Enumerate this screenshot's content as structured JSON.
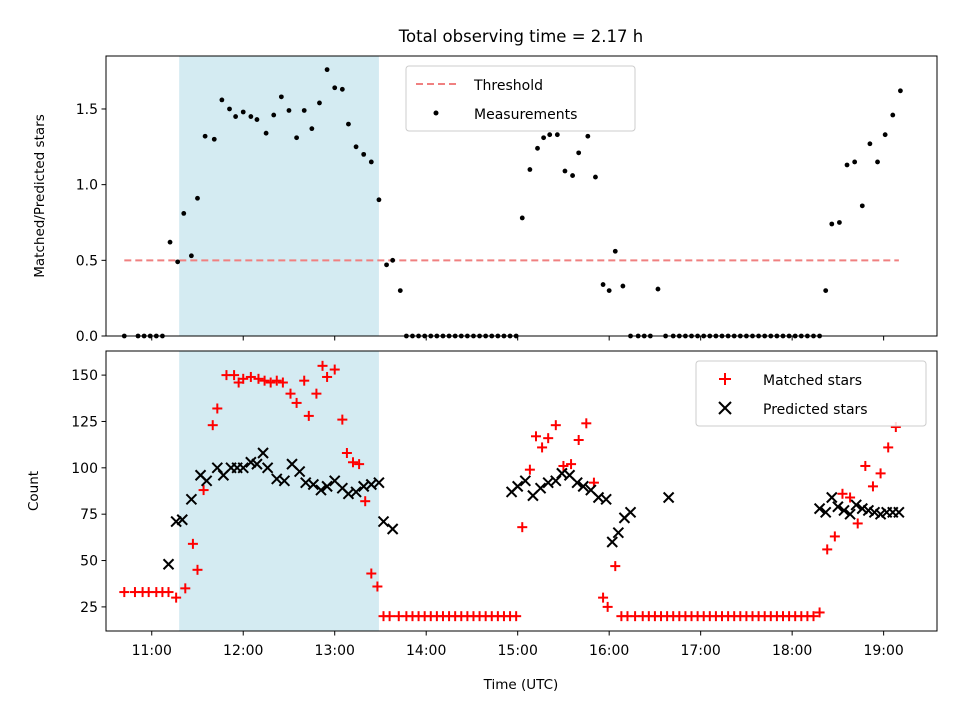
{
  "figure": {
    "title": "Total observing time = 2.17 h",
    "xlabel": "Time (UTC)"
  },
  "chart_data": [
    {
      "type": "scatter",
      "title": "Total observing time = 2.17 h",
      "xlabel": "",
      "ylabel": "Matched/Predicted stars",
      "xlim": [
        "10:30",
        "19:35"
      ],
      "ylim": [
        0,
        1.85
      ],
      "yticks": [
        "0.0",
        "0.5",
        "1.0",
        "1.5"
      ],
      "shaded_span": {
        "from": "11:18",
        "to": "13:29",
        "color": "#add8e6"
      },
      "legend_position": "upper center",
      "grid": false,
      "series": [
        {
          "name": "Threshold",
          "kind": "line",
          "style": "dashed",
          "color": "#f08080",
          "x": [
            "10:42",
            "19:10"
          ],
          "y": [
            0.5,
            0.5
          ]
        },
        {
          "name": "Measurements",
          "kind": "points",
          "color": "#000000",
          "x": [
            "10:42",
            "10:51",
            "10:55",
            "10:59",
            "11:03",
            "11:07",
            "11:12",
            "11:17",
            "11:21",
            "11:26",
            "11:30",
            "11:35",
            "11:41",
            "11:46",
            "11:51",
            "11:55",
            "12:00",
            "12:05",
            "12:09",
            "12:15",
            "12:20",
            "12:25",
            "12:30",
            "12:35",
            "12:40",
            "12:45",
            "12:50",
            "12:55",
            "13:00",
            "13:05",
            "13:09",
            "13:14",
            "13:19",
            "13:24",
            "13:29",
            "13:34",
            "13:38",
            "13:43",
            "13:47",
            "13:51",
            "13:55",
            "13:59",
            "14:03",
            "14:07",
            "14:11",
            "14:15",
            "14:19",
            "14:23",
            "14:27",
            "14:31",
            "14:35",
            "14:39",
            "14:43",
            "14:47",
            "14:51",
            "14:55",
            "14:59",
            "15:03",
            "15:08",
            "15:13",
            "15:17",
            "15:21",
            "15:26",
            "15:31",
            "15:36",
            "15:40",
            "15:46",
            "15:51",
            "15:56",
            "16:00",
            "16:04",
            "16:09",
            "16:14",
            "16:19",
            "16:23",
            "16:27",
            "16:32",
            "16:37",
            "16:42",
            "16:46",
            "16:50",
            "16:54",
            "16:58",
            "17:02",
            "17:06",
            "17:10",
            "17:14",
            "17:18",
            "17:22",
            "17:26",
            "17:30",
            "17:34",
            "17:38",
            "17:42",
            "17:46",
            "17:50",
            "17:54",
            "17:58",
            "18:02",
            "18:06",
            "18:10",
            "18:14",
            "18:18",
            "18:22",
            "18:26",
            "18:31",
            "18:36",
            "18:41",
            "18:46",
            "18:51",
            "18:56",
            "19:01",
            "19:06",
            "19:11"
          ],
          "y": [
            0.0,
            0.0,
            0.0,
            0.0,
            0.0,
            0.0,
            0.62,
            0.49,
            0.81,
            0.53,
            0.91,
            1.32,
            1.3,
            1.56,
            1.5,
            1.45,
            1.48,
            1.45,
            1.43,
            1.34,
            1.46,
            1.58,
            1.49,
            1.31,
            1.49,
            1.37,
            1.54,
            1.76,
            1.64,
            1.63,
            1.4,
            1.25,
            1.2,
            1.15,
            0.9,
            0.47,
            0.5,
            0.3,
            0.0,
            0.0,
            0.0,
            0.0,
            0.0,
            0.0,
            0.0,
            0.0,
            0.0,
            0.0,
            0.0,
            0.0,
            0.0,
            0.0,
            0.0,
            0.0,
            0.0,
            0.0,
            0.0,
            0.78,
            1.1,
            1.24,
            1.31,
            1.33,
            1.33,
            1.09,
            1.06,
            1.21,
            1.32,
            1.05,
            0.34,
            0.3,
            0.56,
            0.33,
            0.0,
            0.0,
            0.0,
            0.0,
            0.31,
            0.0,
            0.0,
            0.0,
            0.0,
            0.0,
            0.0,
            0.0,
            0.0,
            0.0,
            0.0,
            0.0,
            0.0,
            0.0,
            0.0,
            0.0,
            0.0,
            0.0,
            0.0,
            0.0,
            0.0,
            0.0,
            0.0,
            0.0,
            0.0,
            0.0,
            0.0,
            0.3,
            0.74,
            0.75,
            1.13,
            1.15,
            0.86,
            1.27,
            1.15,
            1.33,
            1.46,
            1.62
          ]
        }
      ]
    },
    {
      "type": "scatter",
      "xlabel": "Time (UTC)",
      "ylabel": "Count",
      "xlim": [
        "10:30",
        "19:35"
      ],
      "ylim": [
        12,
        163
      ],
      "xticks": [
        "11:00",
        "12:00",
        "13:00",
        "14:00",
        "15:00",
        "16:00",
        "17:00",
        "18:00",
        "19:00"
      ],
      "yticks": [
        "25",
        "50",
        "75",
        "100",
        "125",
        "150"
      ],
      "shaded_span": {
        "from": "11:18",
        "to": "13:29",
        "color": "#add8e6"
      },
      "legend_position": "upper right",
      "grid": false,
      "series": [
        {
          "name": "Matched stars",
          "marker": "plus",
          "color": "#ff0000",
          "x": [
            "10:42",
            "10:49",
            "10:54",
            "10:58",
            "11:03",
            "11:07",
            "11:11",
            "11:16",
            "11:22",
            "11:27",
            "11:30",
            "11:34",
            "11:40",
            "11:43",
            "11:49",
            "11:54",
            "11:57",
            "12:00",
            "12:05",
            "12:10",
            "12:14",
            "12:18",
            "12:22",
            "12:26",
            "12:31",
            "12:35",
            "12:40",
            "12:43",
            "12:48",
            "12:52",
            "12:55",
            "13:00",
            "13:05",
            "13:08",
            "13:12",
            "13:16",
            "13:20",
            "13:24",
            "13:28",
            "13:32",
            "13:36",
            "13:42",
            "13:47",
            "13:51",
            "13:55",
            "13:59",
            "14:03",
            "14:07",
            "14:11",
            "14:15",
            "14:19",
            "14:23",
            "14:27",
            "14:31",
            "14:35",
            "14:39",
            "14:43",
            "14:47",
            "14:51",
            "14:55",
            "14:59",
            "15:03",
            "15:08",
            "15:12",
            "15:16",
            "15:20",
            "15:25",
            "15:30",
            "15:35",
            "15:40",
            "15:45",
            "15:50",
            "15:56",
            "15:59",
            "16:04",
            "16:08",
            "16:12",
            "16:17",
            "16:22",
            "16:26",
            "16:30",
            "16:34",
            "16:38",
            "16:42",
            "16:46",
            "16:50",
            "16:54",
            "16:58",
            "17:02",
            "17:06",
            "17:10",
            "17:14",
            "17:18",
            "17:22",
            "17:26",
            "17:30",
            "17:34",
            "17:38",
            "17:42",
            "17:46",
            "17:50",
            "17:54",
            "17:58",
            "18:02",
            "18:06",
            "18:10",
            "18:14",
            "18:18",
            "18:23",
            "18:28",
            "18:33",
            "18:38",
            "18:43",
            "18:48",
            "18:53",
            "18:58",
            "19:03",
            "19:08"
          ],
          "y": [
            33,
            33,
            33,
            33,
            33,
            33,
            33,
            30,
            35,
            59,
            45,
            88,
            123,
            132,
            150,
            150,
            146,
            148,
            149,
            148,
            147,
            146,
            147,
            146,
            140,
            135,
            147,
            128,
            140,
            155,
            149,
            153,
            126,
            108,
            103,
            102,
            82,
            43,
            36,
            20,
            20,
            20,
            20,
            20,
            20,
            20,
            20,
            20,
            20,
            20,
            20,
            20,
            20,
            20,
            20,
            20,
            20,
            20,
            20,
            20,
            20,
            68,
            99,
            117,
            111,
            116,
            123,
            101,
            102,
            115,
            124,
            92,
            30,
            25,
            47,
            20,
            20,
            20,
            20,
            20,
            20,
            20,
            20,
            20,
            20,
            20,
            20,
            20,
            20,
            20,
            20,
            20,
            20,
            20,
            20,
            20,
            20,
            20,
            20,
            20,
            20,
            20,
            20,
            20,
            20,
            20,
            20,
            22,
            56,
            63,
            86,
            84,
            70,
            101,
            90,
            97,
            111,
            122
          ]
        },
        {
          "name": "Predicted stars",
          "marker": "x",
          "color": "#000000",
          "x": [
            "11:11",
            "11:16",
            "11:20",
            "11:26",
            "11:32",
            "11:36",
            "11:43",
            "11:47",
            "11:52",
            "11:56",
            "12:00",
            "12:05",
            "12:09",
            "12:13",
            "12:16",
            "12:22",
            "12:27",
            "12:32",
            "12:37",
            "12:41",
            "12:46",
            "12:51",
            "12:55",
            "13:00",
            "13:05",
            "13:09",
            "13:14",
            "13:19",
            "13:24",
            "13:29",
            "13:32",
            "13:38",
            "14:56",
            "15:00",
            "15:05",
            "15:10",
            "15:15",
            "15:20",
            "15:25",
            "15:29",
            "15:34",
            "15:39",
            "15:43",
            "15:48",
            "15:53",
            "15:58",
            "16:02",
            "16:06",
            "16:10",
            "16:14",
            "16:39",
            "18:18",
            "18:22",
            "18:26",
            "18:30",
            "18:34",
            "18:38",
            "18:42",
            "18:46",
            "18:50",
            "18:54",
            "18:58",
            "19:02",
            "19:06",
            "19:10"
          ],
          "y": [
            48,
            71,
            72,
            83,
            96,
            93,
            100,
            96,
            100,
            100,
            100,
            103,
            102,
            108,
            100,
            94,
            93,
            102,
            98,
            92,
            91,
            88,
            90,
            93,
            89,
            86,
            87,
            90,
            91,
            92,
            71,
            67,
            87,
            90,
            93,
            85,
            89,
            92,
            93,
            97,
            96,
            92,
            90,
            88,
            84,
            83,
            60,
            65,
            73,
            76,
            84,
            78,
            76,
            84,
            79,
            77,
            75,
            80,
            78,
            77,
            76,
            75,
            76,
            76,
            76
          ]
        }
      ]
    }
  ]
}
